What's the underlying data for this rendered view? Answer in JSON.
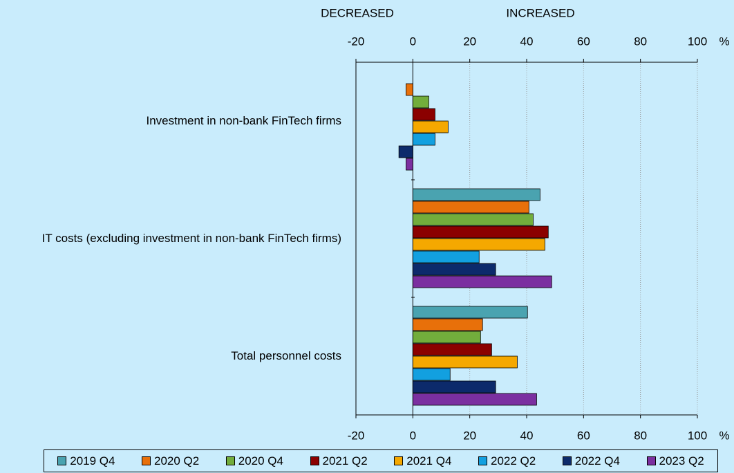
{
  "chart_data": {
    "type": "hbar",
    "annotations": [
      "DECREASED",
      "INCREASED"
    ],
    "x_unit": "%",
    "categories": [
      "Investment in non-bank FinTech firms",
      "IT costs (excluding investment in non-bank FinTech firms)",
      "Total personnel costs"
    ],
    "series": [
      {
        "name": "2019 Q4",
        "color": "#4aa3b0",
        "values": [
          0,
          44.7,
          40.3
        ]
      },
      {
        "name": "2020 Q2",
        "color": "#e8700a",
        "values": [
          -2.4,
          40.8,
          24.5
        ]
      },
      {
        "name": "2020 Q4",
        "color": "#72ad3c",
        "values": [
          5.6,
          42.3,
          23.8
        ]
      },
      {
        "name": "2021 Q2",
        "color": "#8b0000",
        "values": [
          7.8,
          47.6,
          27.7
        ]
      },
      {
        "name": "2021 Q4",
        "color": "#f5a800",
        "values": [
          12.4,
          46.4,
          36.7
        ]
      },
      {
        "name": "2022 Q2",
        "color": "#12a0e0",
        "values": [
          7.8,
          23.3,
          13.1
        ]
      },
      {
        "name": "2022 Q4",
        "color": "#0c2a6b",
        "values": [
          -4.9,
          29.1,
          29.1
        ]
      },
      {
        "name": "2023 Q2",
        "color": "#7b2fa0",
        "values": [
          -2.4,
          48.8,
          43.5
        ]
      }
    ],
    "xlim": [
      -20,
      100
    ],
    "xticks": [
      -20,
      0,
      20,
      40,
      60,
      80,
      100
    ],
    "grid": true
  }
}
